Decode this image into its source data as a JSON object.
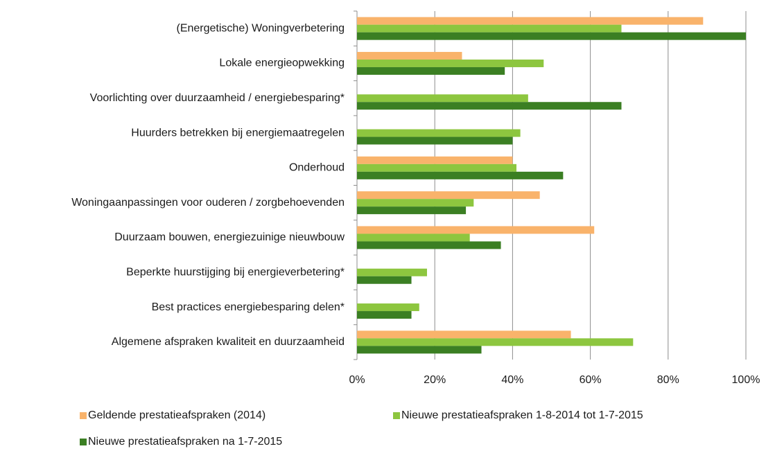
{
  "chart_data": {
    "type": "bar",
    "orientation": "horizontal",
    "categories": [
      "(Energetische) Woningverbetering",
      "Lokale energieopwekking",
      "Voorlichting over duurzaamheid / energiebesparing*",
      "Huurders betrekken bij energiemaatregelen",
      "Onderhoud",
      "Woningaanpassingen voor ouderen / zorgbehoevenden",
      "Duurzaam bouwen, energiezuinige nieuwbouw",
      "Beperkte huurstijging bij energieverbetering*",
      "Best practices energiebesparing delen*",
      "Algemene afspraken kwaliteit en duurzaamheid"
    ],
    "series": [
      {
        "name": "Geldende prestatieafspraken (2014)",
        "color": "#f9b36b",
        "values": [
          89,
          27,
          null,
          null,
          40,
          47,
          61,
          null,
          null,
          55
        ]
      },
      {
        "name": "Nieuwe prestatieafspraken 1-8-2014 tot 1-7-2015",
        "color": "#8dc63f",
        "values": [
          68,
          48,
          44,
          42,
          41,
          30,
          29,
          18,
          16,
          71
        ]
      },
      {
        "name": "Nieuwe prestatieafspraken na 1-7-2015",
        "color": "#3b7f23",
        "values": [
          100,
          38,
          68,
          40,
          53,
          28,
          37,
          14,
          14,
          32
        ]
      }
    ],
    "xlim": [
      0,
      100
    ],
    "xticks": [
      {
        "value": 0,
        "label": "0%"
      },
      {
        "value": 20,
        "label": "20%"
      },
      {
        "value": 40,
        "label": "40%"
      },
      {
        "value": 60,
        "label": "60%"
      },
      {
        "value": 80,
        "label": "80%"
      },
      {
        "value": 100,
        "label": "100%"
      }
    ],
    "grid": true,
    "legend": "bottom"
  }
}
